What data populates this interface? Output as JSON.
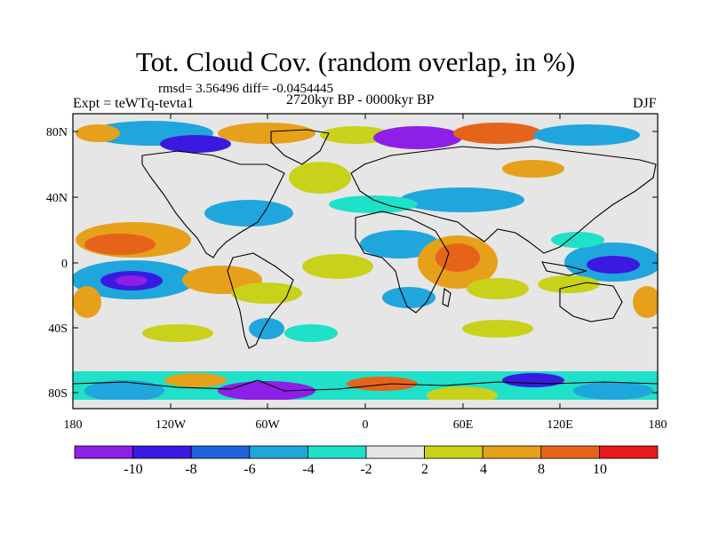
{
  "title": "Tot. Cloud Cov. (random overlap, in %)",
  "stats": "rmsd= 3.56496 diff= -0.0454445",
  "experiment": "Expt = teWTq-tevta1",
  "period": "2720kyr BP - 0000kyr BP",
  "season": "DJF",
  "lat_ticks": [
    "80N",
    "40N",
    "0",
    "40S",
    "80S"
  ],
  "lon_ticks": [
    "180",
    "120W",
    "60W",
    "0",
    "60E",
    "120E",
    "180"
  ],
  "colorbar": {
    "labels": [
      "-10",
      "-8",
      "-6",
      "-4",
      "-2",
      "2",
      "4",
      "8",
      "10"
    ],
    "colors": [
      "#8d1fe6",
      "#3a1ae0",
      "#1f63dc",
      "#1fa6dc",
      "#1fe0c8",
      "#e6e6e6",
      "#c8d21a",
      "#e6a01a",
      "#e6641a",
      "#e61a1a"
    ]
  },
  "colors": {
    "ocean_fill": "#e6e6e6",
    "coastline": "#000000"
  }
}
